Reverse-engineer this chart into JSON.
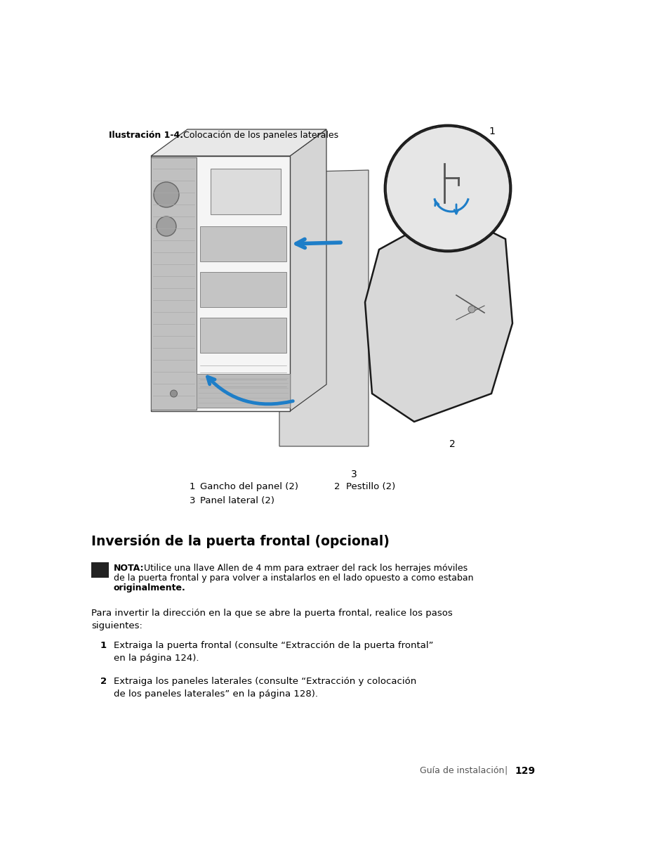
{
  "bg_color": "#ffffff",
  "fig_caption_bold": "Ilustración 1-4.",
  "fig_caption_normal": "    Colocación de los paneles laterales",
  "legend_1_num": "1",
  "legend_1_text": "Gancho del panel (2)",
  "legend_2_num": "2",
  "legend_2_text": "Pestillo (2)",
  "legend_3_num": "3",
  "legend_3_text": "Panel lateral (2)",
  "section_title": "Inversión de la puerta frontal (opcional)",
  "nota_label": "NOTA:",
  "nota_text_line1": "Utilice una llave Allen de 4 mm para extraer del rack los herrajes móviles",
  "nota_text_line2": "de la puerta frontal y para volver a instalarlos en el lado opuesto a como estaban",
  "nota_text_line3": "originalmente.",
  "para1_line1": "Para invertir la dirección en la que se abre la puerta frontal, realice los pasos",
  "para1_line2": "siguientes:",
  "step1_num": "1",
  "step1_line1": "Extraiga la puerta frontal (consulte “Extracción de la puerta frontal”",
  "step1_line2": "en la página 124).",
  "step2_num": "2",
  "step2_line1": "Extraiga los paneles laterales (consulte “Extracción y colocación",
  "step2_line2": "de los paneles laterales” en la página 128).",
  "footer_text": "Guía de instalación",
  "footer_sep": "|",
  "footer_page": "129",
  "arrow_color": "#1e7ec8",
  "label_color": "#000000",
  "outline_color": "#404040",
  "face_light": "#f5f5f5",
  "face_mid": "#e0e0e0",
  "face_dark": "#c8c8c8",
  "face_darker": "#b8b8b8"
}
